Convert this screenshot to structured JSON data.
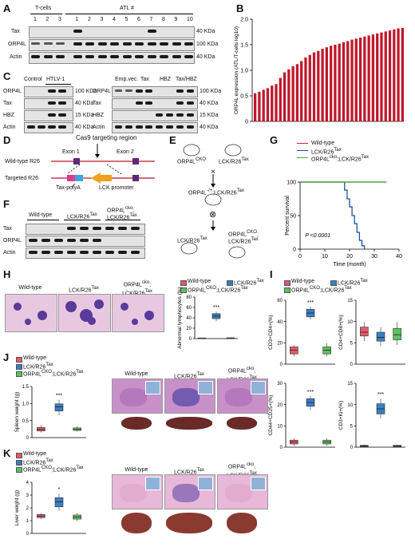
{
  "panels": {
    "A": {
      "label": "A",
      "group_tcells": "T-cells",
      "group_atl": "ATL #",
      "tcell_lanes": [
        "1",
        "2",
        "3"
      ],
      "atl_lanes": [
        "1",
        "2",
        "3",
        "4",
        "5",
        "6",
        "7",
        "8",
        "9",
        "10"
      ],
      "rows": [
        "Tax",
        "ORP4L",
        "Actin"
      ],
      "markers": [
        "40 KDa",
        "100 KDa",
        "40 KDa"
      ]
    },
    "B": {
      "label": "B",
      "bar_color": "#c0182c",
      "chart_data": {
        "type": "bar",
        "ylabel": "ORP4L expression (ATL/T-cells log10)",
        "ylim": [
          0,
          2.0
        ],
        "yticks": [
          "0",
          "0.5",
          "1.0",
          "1.5",
          "2.0"
        ],
        "values": [
          0.55,
          0.58,
          0.62,
          0.65,
          0.7,
          0.73,
          0.85,
          0.96,
          1.02,
          1.08,
          1.12,
          1.18,
          1.25,
          1.3,
          1.35,
          1.38,
          1.42,
          1.45,
          1.48,
          1.5,
          1.52,
          1.55,
          1.57,
          1.6,
          1.62,
          1.64,
          1.66,
          1.68,
          1.7,
          1.72,
          1.74,
          1.76,
          1.78,
          1.8,
          1.82,
          1.83
        ]
      }
    },
    "C": {
      "label": "C",
      "left_groups": [
        "Control",
        "HTLV-1"
      ],
      "right_groups": [
        "Emp.vec.",
        "Tax",
        "HBZ",
        "Tax/HBZ"
      ],
      "rows": [
        "ORP4L",
        "Tax",
        "HBZ",
        "Actin"
      ],
      "markers": [
        "100 KDa",
        "40 KDa",
        "15 KDa",
        "40 KDa"
      ]
    },
    "D": {
      "label": "D",
      "title": "Cas9 targeting region",
      "exon1": "Exon 1",
      "exon2": "Exon 2",
      "wt": "Wild-type R26",
      "targeted": "Targeted R26",
      "taxpolya": "Tax-polyA",
      "lck": "LCK promoter"
    },
    "E": {
      "label": "E",
      "parent1": "ORP4L",
      "parent1_sup": "CKO",
      "parent2": "LCK/R26",
      "parent2_sup": "Tax",
      "cross1": "×",
      "f1": "ORP4L",
      "f1_sup": "-/+",
      "f1_rest": ";LCK/R26",
      "f1_sup2": "Tax",
      "self": "⊗",
      "off1": "LCK/R26",
      "off1_sup": "Tax",
      "off2a": "ORP4L",
      "off2a_sup": "CKO",
      "off2b": "LCK/R26",
      "off2b_sup": "Tax"
    },
    "F": {
      "label": "F",
      "groups": [
        "Wild-type",
        "LCK/R26",
        "ORP4L"
      ],
      "group_sups": [
        "",
        "Tax",
        "cko"
      ],
      "group3_line2": "LCK/R26",
      "group3_line2_sup": "Tax",
      "rows": [
        "Tax",
        "ORP4L",
        "Actin"
      ]
    },
    "G": {
      "label": "G",
      "legend": [
        "Wild-type",
        "LCK/R26",
        "ORP4L"
      ],
      "legend_sups": [
        "",
        "Tax",
        "cko"
      ],
      "legend3_rest": ";LCK/R26",
      "legend3_sup2": "Tax",
      "colors": [
        "#d02030",
        "#2050a0",
        "#40b040"
      ],
      "pval": "P <0.0001",
      "chart_data": {
        "type": "line",
        "xlabel": "Time (month)",
        "ylabel": "Percent survival",
        "xlim": [
          0,
          40
        ],
        "ylim": [
          0,
          100
        ],
        "xticks": [
          "0",
          "10",
          "20",
          "30",
          "40"
        ],
        "yticks": [
          "0",
          "50",
          "100"
        ],
        "series": [
          {
            "name": "Wild-type",
            "x": [
              0,
              35
            ],
            "y": [
              100,
              100
            ]
          },
          {
            "name": "LCK/R26Tax",
            "x": [
              0,
              18,
              18,
              19,
              19,
              20,
              20,
              21,
              21,
              22,
              22,
              23,
              23,
              24,
              24,
              25,
              25,
              26,
              26
            ],
            "y": [
              100,
              100,
              88,
              88,
              75,
              75,
              63,
              63,
              50,
              50,
              38,
              38,
              25,
              25,
              13,
              13,
              5,
              5,
              0
            ]
          },
          {
            "name": "ORP4Lcko;LCK/R26Tax",
            "x": [
              0,
              35
            ],
            "y": [
              100,
              100
            ]
          }
        ]
      }
    },
    "H": {
      "label": "H",
      "img_labels": [
        "Wild-type",
        "LCK/R26",
        "ORP4L"
      ],
      "img_sups": [
        "",
        "Tax",
        "cko"
      ],
      "img3_line2": "LCK/R26",
      "img3_sup2": "Tax",
      "ylabel": "Abnormal lymphocytes (%)",
      "yticks": [
        "0",
        "20",
        "40",
        "60",
        "80"
      ],
      "sig": "***"
    },
    "I": {
      "label": "I",
      "sub": [
        {
          "ylabel": "CD3+CD4+(%)",
          "yticks": [
            "0",
            "20",
            "40",
            "60"
          ],
          "sig": "***"
        },
        {
          "ylabel": "CD4+CD8+(%)",
          "yticks": [
            "0",
            "5",
            "10",
            "15"
          ],
          "sig": ""
        },
        {
          "ylabel": "CD44+CD25+(%)",
          "yticks": [
            "0",
            "10",
            "20",
            "30"
          ],
          "sig": "***"
        },
        {
          "ylabel": "CD3+Ki+(%)",
          "yticks": [
            "0",
            "5",
            "10",
            "15"
          ],
          "sig": "***"
        }
      ]
    },
    "J": {
      "label": "J",
      "ylabel": "Spleen weight (g)",
      "yticks": [
        "0",
        "0.5",
        "1.0",
        "1.5"
      ],
      "sig": "***",
      "img_labels": [
        "Wild-type",
        "LCK/R26",
        "ORP4L"
      ],
      "img_sups": [
        "",
        "Tax",
        "cko"
      ],
      "img3_line2": "LCK/R26",
      "img3_sup2": "Tax"
    },
    "K": {
      "label": "K",
      "ylabel": "Liver weight (g)",
      "yticks": [
        "0",
        "1",
        "2",
        "3",
        "4"
      ],
      "sig": "*",
      "img_labels": [
        "Wild-type",
        "LCK/R26",
        "ORP4L"
      ],
      "img_sups": [
        "",
        "Tax",
        "cko"
      ],
      "img3_line2": "LCK/R26",
      "img3_sup2": "Tax"
    }
  },
  "legend": {
    "items": [
      "Wild-type",
      "LCK/R26",
      "ORP4L"
    ],
    "sups": [
      "",
      "Tax",
      "CKO"
    ],
    "item3_rest": ";LCK/R26",
    "item3_sup2": "Tax",
    "colors": [
      "#e05a6a",
      "#3a7ec0",
      "#5cc060"
    ]
  }
}
